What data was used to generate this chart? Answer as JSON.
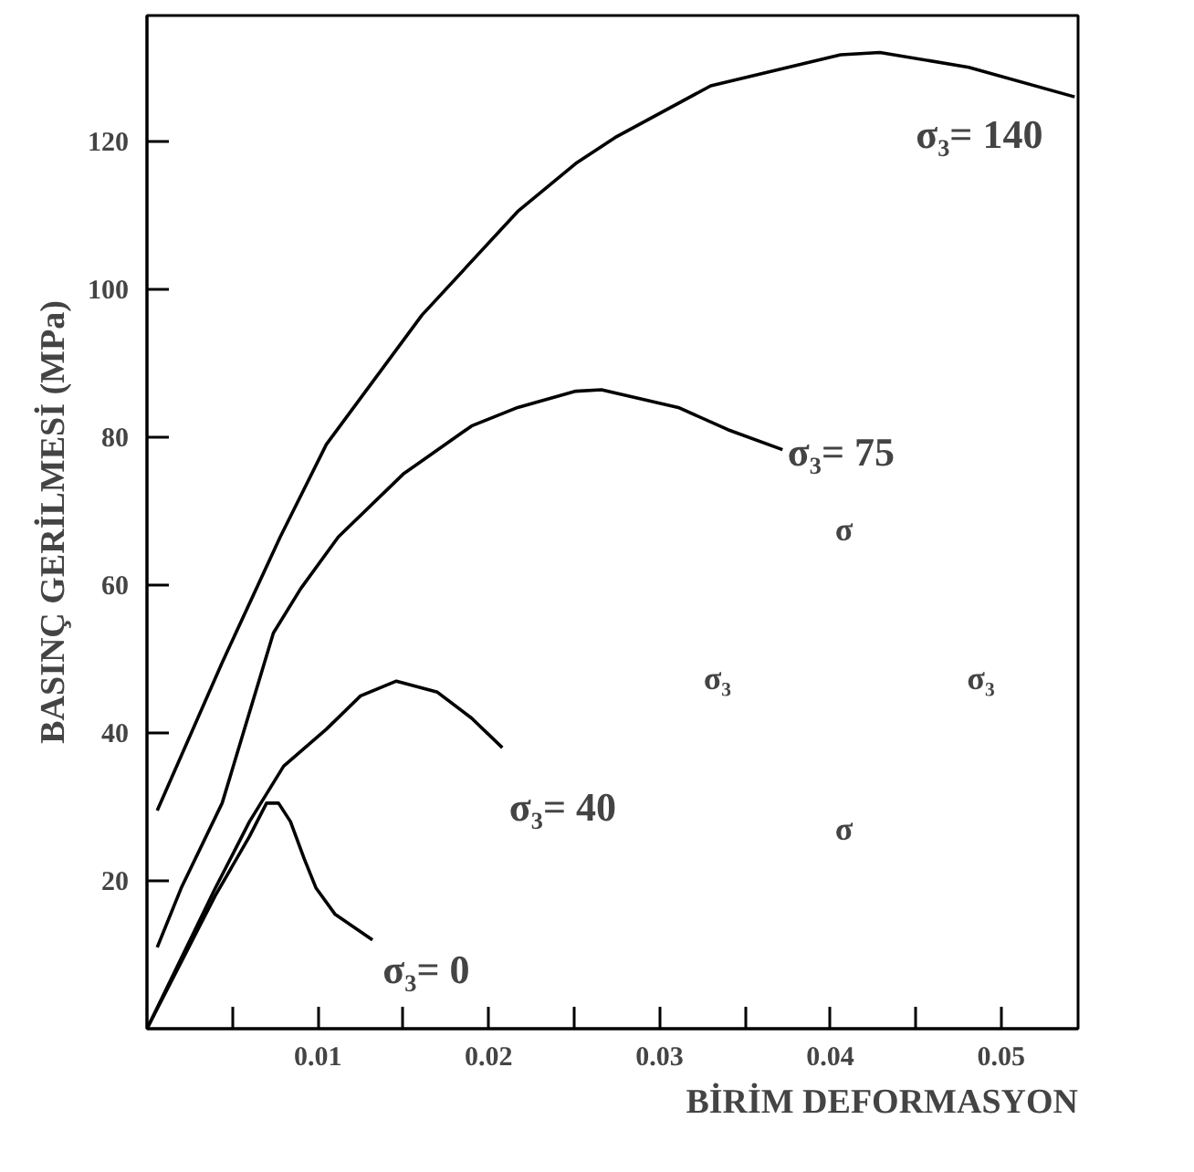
{
  "chart_data": {
    "type": "line",
    "xlabel": "BİRİM DEFORMASYON",
    "ylabel": "BASINÇ GERİLMESİ (MPa)",
    "xlim": [
      0,
      0.0545
    ],
    "ylim": [
      0,
      137
    ],
    "xticks": [
      {
        "value": 0.005,
        "label": null
      },
      0.01,
      {
        "value": 0.015,
        "label": null
      },
      0.02,
      {
        "value": 0.025,
        "label": null
      },
      0.03,
      {
        "value": 0.035,
        "label": null
      },
      0.04,
      {
        "value": 0.045,
        "label": null
      },
      0.05
    ],
    "yticks": [
      20,
      40,
      60,
      80,
      100,
      120
    ],
    "grid": false,
    "marker": "none",
    "line_style": "solid",
    "series": [
      {
        "color": "#000000",
        "x": [
          0,
          0.002,
          0.004,
          0.006,
          0.007,
          0.0077,
          0.0084,
          0.0092,
          0.0099,
          0.011,
          0.0132
        ],
        "values": [
          0,
          9,
          18,
          26,
          30.5,
          30.5,
          28,
          23,
          19,
          15.5,
          12
        ]
      },
      {
        "color": "#000000",
        "x": [
          0,
          0.002,
          0.004,
          0.006,
          0.008,
          0.0105,
          0.0125,
          0.0146,
          0.017,
          0.019,
          0.0208
        ],
        "values": [
          0,
          9.5,
          19,
          28,
          35.5,
          40.5,
          45,
          47,
          45.5,
          42,
          38
        ]
      },
      {
        "color": "#000000",
        "x": [
          0.0006,
          0.002,
          0.0044,
          0.0074,
          0.009,
          0.0112,
          0.015,
          0.019,
          0.0217,
          0.0251,
          0.0266,
          0.0311,
          0.034,
          0.0372
        ],
        "values": [
          11,
          19,
          30.5,
          53.5,
          59.5,
          66.5,
          75,
          81.5,
          84,
          86.2,
          86.4,
          84,
          81,
          78.3
        ]
      },
      {
        "color": "#000000",
        "x": [
          0.0006,
          0.0044,
          0.0078,
          0.0105,
          0.0161,
          0.0217,
          0.0251,
          0.0274,
          0.033,
          0.0406,
          0.0429,
          0.0481,
          0.0543
        ],
        "values": [
          29.5,
          49.5,
          66.5,
          79,
          96.5,
          110.5,
          117,
          120.5,
          127.5,
          131.7,
          132,
          130,
          126
        ]
      }
    ],
    "annotations": [
      "σ₃= 0",
      "σ₃= 40",
      "σ₃= 75",
      "σ₃= 140",
      "σ",
      "σ",
      "σ₃",
      "σ₃"
    ]
  }
}
